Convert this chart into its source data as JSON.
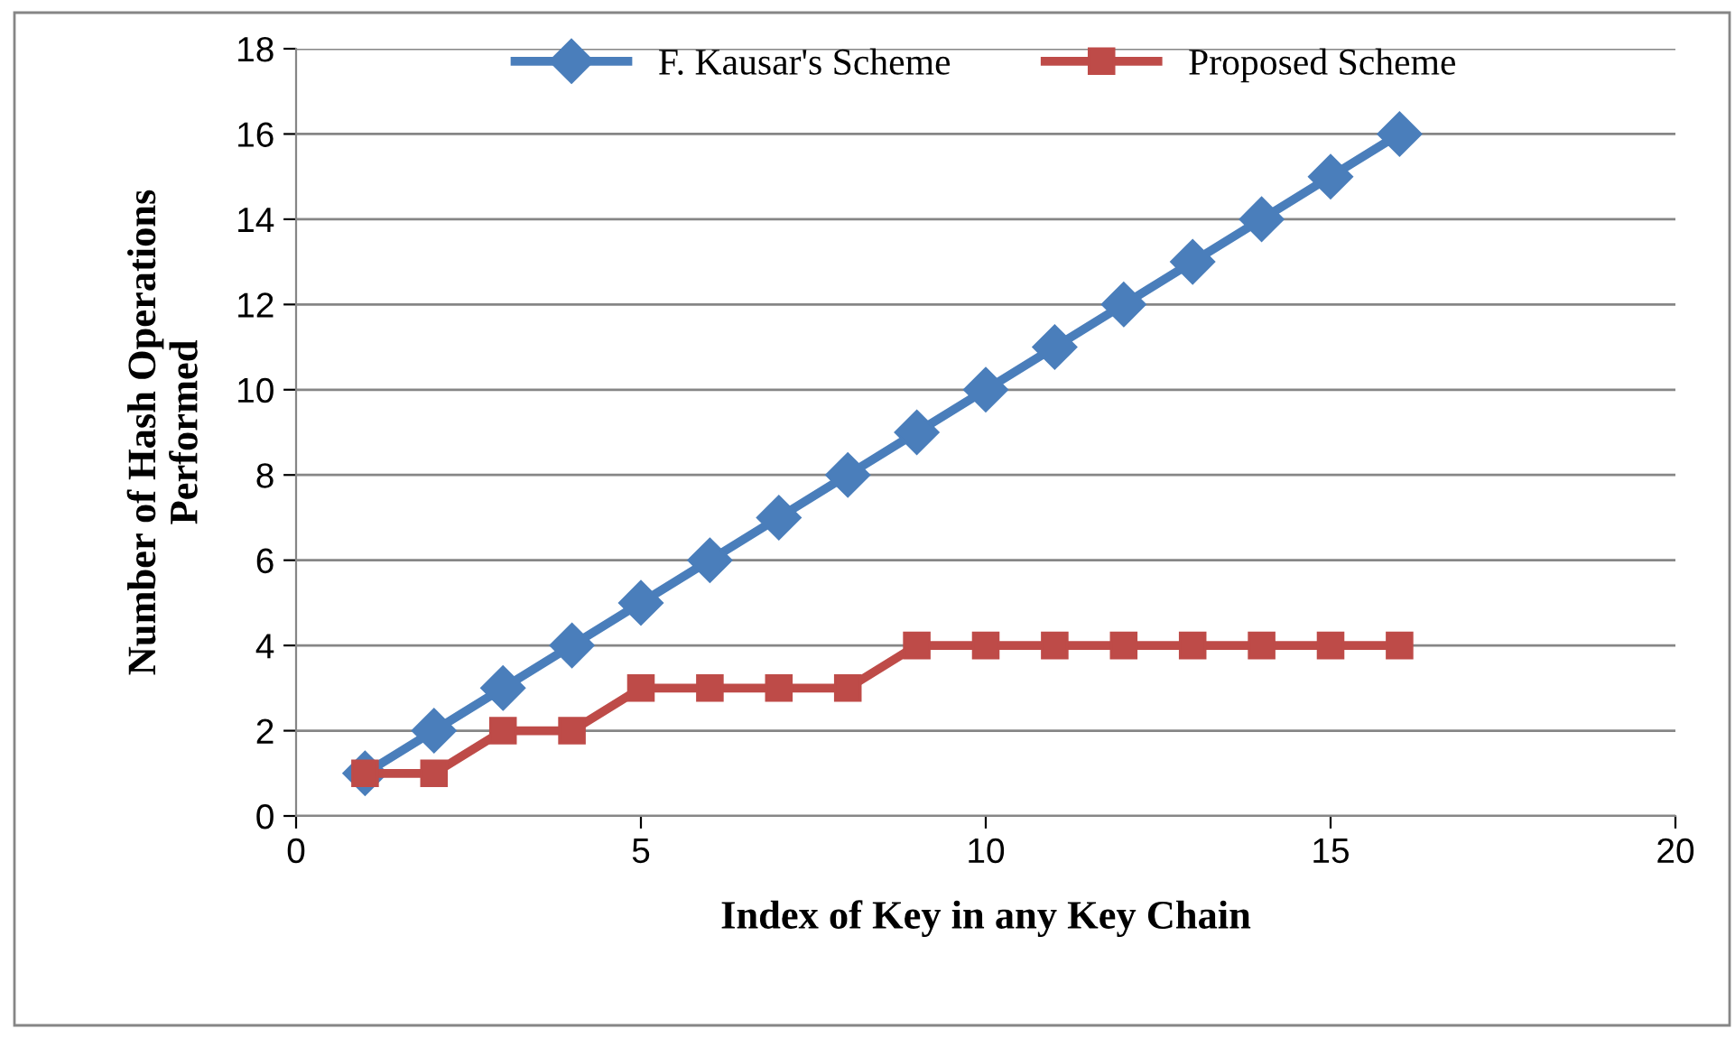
{
  "chart_data": {
    "type": "line",
    "xlabel": "Index of Key in any Key Chain",
    "ylabel": "Number of Hash Operations\nPerformed",
    "x": [
      1,
      2,
      3,
      4,
      5,
      6,
      7,
      8,
      9,
      10,
      11,
      12,
      13,
      14,
      15,
      16
    ],
    "series": [
      {
        "name": "F. Kausar's Scheme",
        "color": "#4a7ebb",
        "marker": "diamond",
        "values": [
          1,
          2,
          3,
          4,
          5,
          6,
          7,
          8,
          9,
          10,
          11,
          12,
          13,
          14,
          15,
          16
        ]
      },
      {
        "name": "Proposed Scheme",
        "color": "#be4b48",
        "marker": "square",
        "values": [
          1,
          1,
          2,
          2,
          3,
          3,
          3,
          3,
          4,
          4,
          4,
          4,
          4,
          4,
          4,
          4
        ]
      }
    ],
    "xlim": [
      0,
      20
    ],
    "xticks": [
      0,
      5,
      10,
      15,
      20
    ],
    "ylim": [
      0,
      18
    ],
    "yticks": [
      0,
      2,
      4,
      6,
      8,
      10,
      12,
      14,
      16,
      18
    ],
    "grid": "y",
    "legend": "top",
    "line_style": "solid"
  }
}
